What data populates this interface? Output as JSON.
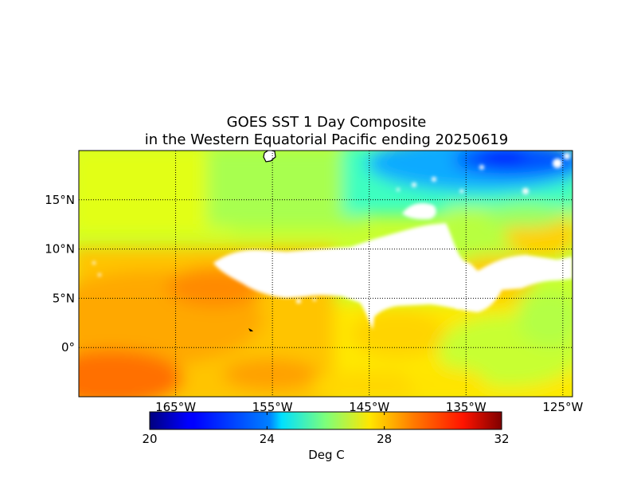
{
  "title_line1": "GOES SST 1 Day Composite",
  "title_line2": "in the Western Equatorial Pacific ending 20250619",
  "map": {
    "lon_ticks": [
      {
        "lon": -165,
        "label": "165°W"
      },
      {
        "lon": -155,
        "label": "155°W"
      },
      {
        "lon": -145,
        "label": "145°W"
      },
      {
        "lon": -135,
        "label": "135°W"
      },
      {
        "lon": -125,
        "label": "125°W"
      }
    ],
    "lat_ticks": [
      {
        "lat": 15,
        "label": "15°N"
      },
      {
        "lat": 10,
        "label": "10°N"
      },
      {
        "lat": 5,
        "label": "5°N"
      },
      {
        "lat": 0,
        "label": "0°"
      }
    ],
    "lon_range": [
      -175,
      -124
    ],
    "lat_range": [
      -5,
      20
    ],
    "grid": "dotted"
  },
  "colorbar": {
    "ticks": [
      "20",
      "24",
      "28",
      "32"
    ],
    "range": [
      20,
      32
    ],
    "label": "Deg C",
    "colormap": "jet"
  },
  "colors": {
    "cloud_mask": "#ffffff",
    "land": "#ffffff",
    "frame": "#000000"
  }
}
